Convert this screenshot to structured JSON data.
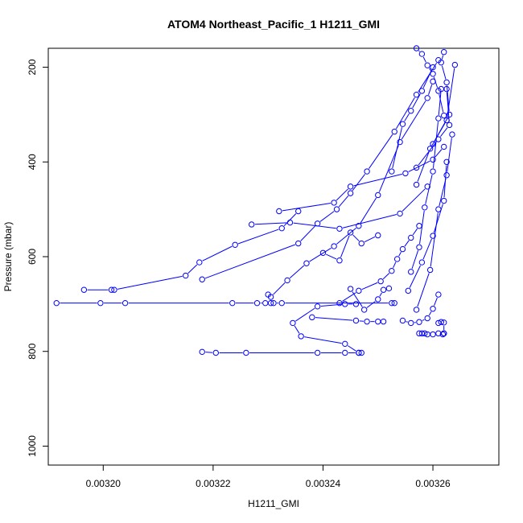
{
  "chart_data": {
    "type": "line",
    "title": "ATOM4 Northeast_Pacific_1 H1211_GMI",
    "xlabel": "H1211_GMI",
    "ylabel": "Pressure (mbar)",
    "xlim": [
      0.00319,
      0.003272
    ],
    "ylim": [
      1040,
      160
    ],
    "y_reversed": true,
    "grid": false,
    "legend": "none",
    "color": "#0000ff",
    "marker": "open-circle",
    "x_ticks": [
      0.0032,
      0.00322,
      0.00324,
      0.00326
    ],
    "x_tick_labels": [
      "0.00320",
      "0.00322",
      "0.00324",
      "0.00326"
    ],
    "y_ticks": [
      200,
      400,
      600,
      800,
      1000
    ],
    "y_tick_labels": [
      "200",
      "400",
      "600",
      "800",
      "1000"
    ],
    "series": [
      {
        "x": [
          0.003247,
          0.0032465,
          0.003244,
          0.003239,
          0.003226,
          0.0032205,
          0.003218
        ],
        "y": [
          803,
          803,
          803,
          803,
          803,
          803,
          801
        ]
      },
      {
        "x": [
          0.0032465,
          0.003244,
          0.003236,
          0.0032345,
          0.003239,
          0.003244,
          0.003246
        ],
        "y": [
          803,
          784,
          768,
          740,
          705,
          700,
          700
        ]
      },
      {
        "x": [
          0.0031915,
          0.0031995,
          0.003204,
          0.0032235,
          0.003228,
          0.0032295,
          0.0032305,
          0.003231,
          0.0032325,
          0.0032525,
          0.003253
        ],
        "y": [
          698,
          698,
          698,
          698,
          698,
          698,
          698,
          698,
          698,
          698,
          698
        ]
      },
      {
        "x": [
          0.003243,
          0.0032465,
          0.0032505,
          0.0032525,
          0.0032535,
          0.0032545,
          0.003256,
          0.0032575
        ],
        "y": [
          698,
          672,
          652,
          630,
          605,
          584,
          560,
          535
        ]
      },
      {
        "x": [
          0.0031965,
          0.0032015,
          0.003202,
          0.003215,
          0.0032175,
          0.003224,
          0.0032325,
          0.0032355
        ],
        "y": [
          670,
          670,
          670,
          640,
          612,
          575,
          540,
          504
        ]
      },
      {
        "x": [
          0.003218,
          0.0032355,
          0.003239,
          0.0032425,
          0.003245,
          0.003248,
          0.003253,
          0.003257,
          0.003261
        ],
        "y": [
          648,
          572,
          530,
          500,
          466,
          420,
          336,
          258,
          185
        ]
      },
      {
        "x": [
          0.00323,
          0.0032305,
          0.0032335,
          0.003237,
          0.003242,
          0.0032465,
          0.00325,
          0.003254,
          0.003259,
          0.00326
        ],
        "y": [
          680,
          685,
          650,
          614,
          578,
          535,
          470,
          358,
          265,
          230
        ]
      },
      {
        "x": [
          0.003232,
          0.003242,
          0.003245,
          0.003255,
          0.00326,
          0.003262
        ],
        "y": [
          504,
          486,
          452,
          424,
          395,
          368
        ]
      },
      {
        "x": [
          0.003227,
          0.003234,
          0.003243,
          0.003254,
          0.003259
        ],
        "y": [
          532,
          528,
          541,
          509,
          452
        ]
      },
      {
        "x": [
          0.00324,
          0.003243,
          0.003245,
          0.003247,
          0.00325
        ],
        "y": [
          592,
          608,
          549,
          572,
          555
        ]
      },
      {
        "x": [
          0.003245,
          0.0032475,
          0.00325,
          0.003251,
          0.003252
        ],
        "y": [
          668,
          712,
          690,
          670,
          667
        ]
      },
      {
        "x": [
          0.003238,
          0.003246,
          0.003248,
          0.00325,
          0.003251
        ],
        "y": [
          728,
          735,
          737,
          737,
          737
        ]
      },
      {
        "x": [
          0.0032545,
          0.003256,
          0.0032575,
          0.003259,
          0.00326,
          0.003261
        ],
        "y": [
          735,
          740,
          738,
          730,
          710,
          680
        ]
      },
      {
        "x": [
          0.003261,
          0.0032615,
          0.003262,
          0.003262,
          0.0032618
        ],
        "y": [
          740,
          738,
          739,
          762,
          764
        ]
      },
      {
        "x": [
          0.0032575,
          0.003258,
          0.0032585,
          0.003259,
          0.00326,
          0.003261,
          0.003262
        ],
        "y": [
          762,
          762,
          762,
          764,
          764,
          762,
          762
        ]
      },
      {
        "x": [
          0.0032555,
          0.003258,
          0.00326,
          0.003262,
          0.0032625
        ],
        "y": [
          672,
          612,
          556,
          482,
          400
        ]
      },
      {
        "x": [
          0.003257,
          0.0032595,
          0.003261,
          0.0032625,
          0.0032635
        ],
        "y": [
          712,
          628,
          500,
          428,
          342
        ]
      },
      {
        "x": [
          0.003256,
          0.0032575,
          0.0032585,
          0.00326,
          0.003261,
          0.0032615
        ],
        "y": [
          632,
          580,
          496,
          420,
          308,
          246
        ]
      },
      {
        "x": [
          0.003262,
          0.003261,
          0.00326,
          0.003259,
          0.003258,
          0.003257
        ],
        "y": [
          302,
          250,
          214,
          196,
          172,
          160
        ]
      },
      {
        "x": [
          0.00326,
          0.003263,
          0.0032625,
          0.0032615,
          0.003262
        ],
        "y": [
          362,
          300,
          232,
          190,
          168
        ]
      },
      {
        "x": [
          0.003257,
          0.003261,
          0.003263,
          0.0032625
        ],
        "y": [
          412,
          352,
          322,
          246
        ]
      },
      {
        "x": [
          0.0032525,
          0.0032545,
          0.003256,
          0.003258,
          0.00326
        ],
        "y": [
          420,
          320,
          292,
          250,
          200
        ]
      },
      {
        "x": [
          0.003257,
          0.0032595,
          0.0032625,
          0.003264
        ],
        "y": [
          448,
          372,
          312,
          195
        ]
      }
    ]
  }
}
